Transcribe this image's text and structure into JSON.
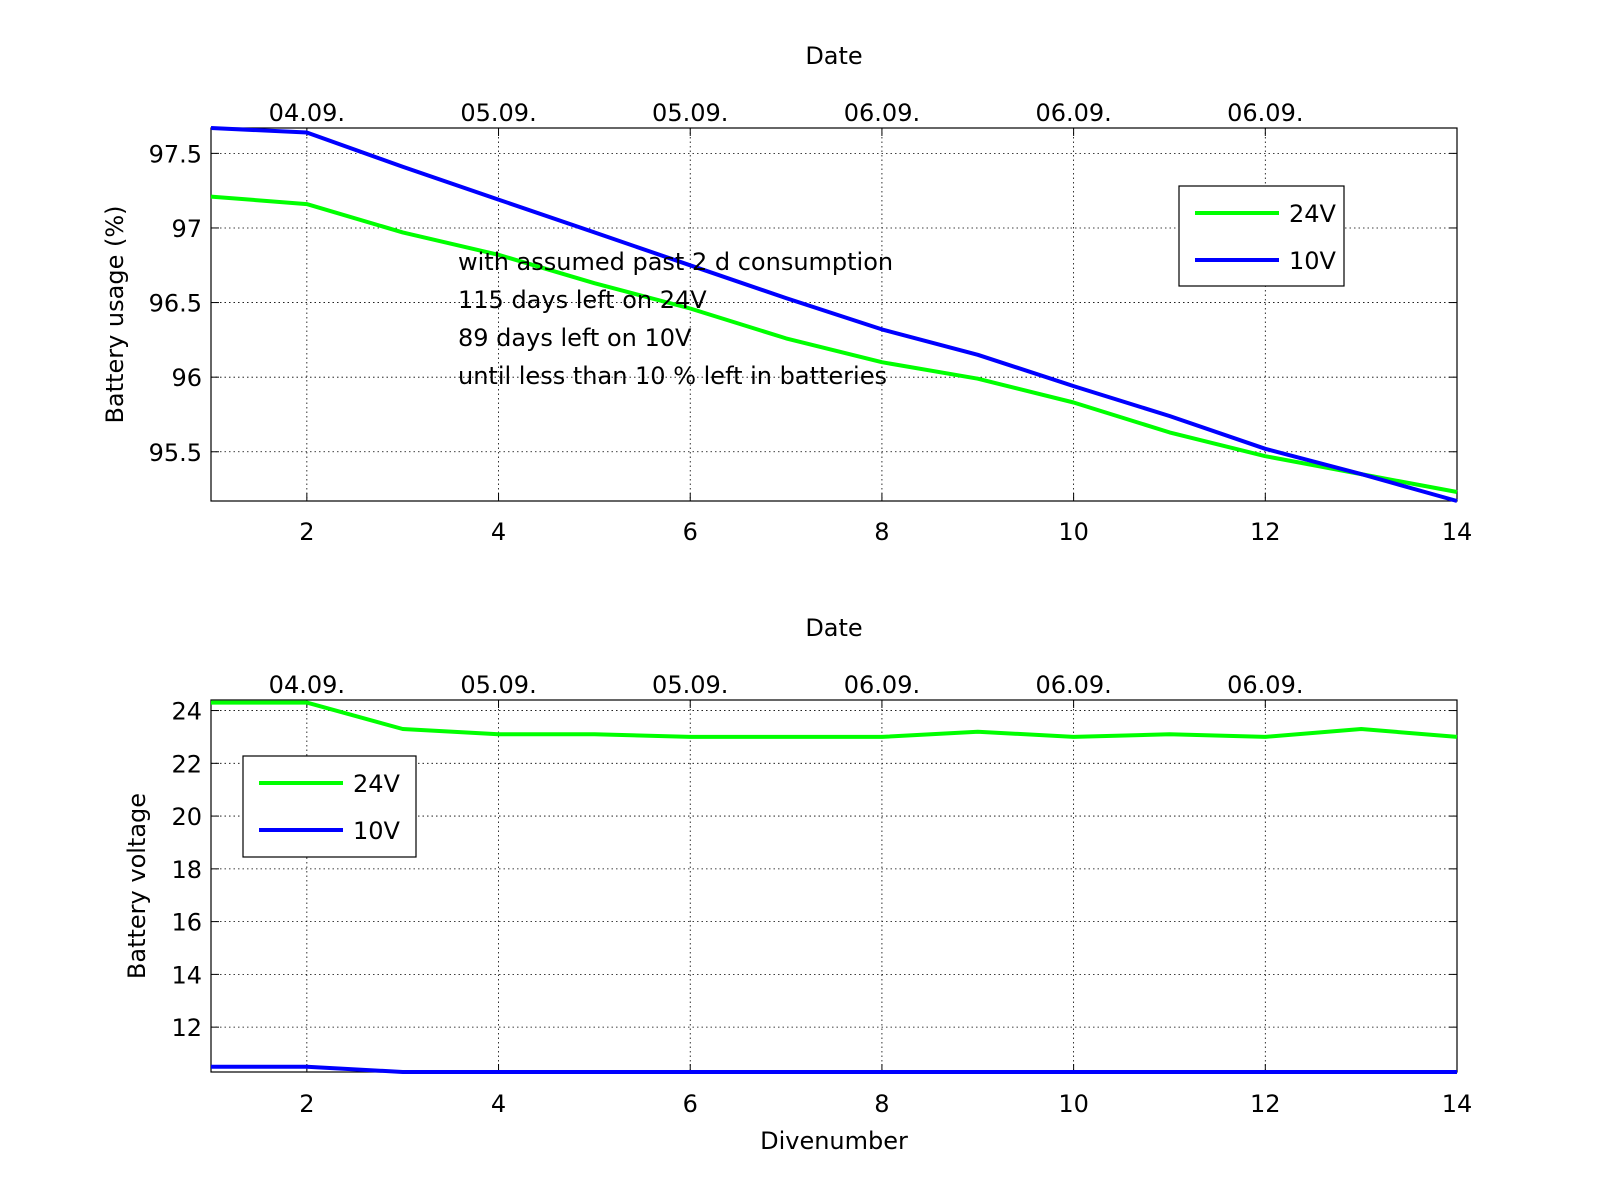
{
  "chart_data": [
    {
      "type": "line",
      "title": "Date",
      "xlabel": "",
      "ylabel": "Battery usage (%)",
      "xlim": [
        1,
        14
      ],
      "ylim": [
        95.17,
        97.67
      ],
      "grid": true,
      "legend_position": "top-right",
      "x_ticks": [
        2,
        4,
        6,
        8,
        10,
        12,
        14
      ],
      "y_ticks": [
        95.5,
        96,
        96.5,
        97,
        97.5
      ],
      "top_tick_labels": [
        "04.09.",
        "05.09.",
        "05.09.",
        "06.09.",
        "06.09.",
        "06.09."
      ],
      "annotation": [
        "with assumed past 2 d consumption",
        "115 days left on 24V",
        "89 days left on 10V",
        "until less than 10 % left in batteries"
      ],
      "x": [
        1,
        2,
        3,
        4,
        5,
        6,
        7,
        8,
        9,
        10,
        11,
        12,
        13,
        14
      ],
      "series": [
        {
          "name": "24V",
          "color": "#00ff00",
          "values": [
            97.21,
            97.16,
            96.97,
            96.82,
            96.63,
            96.46,
            96.26,
            96.1,
            95.99,
            95.83,
            95.63,
            95.47,
            95.35,
            95.23
          ]
        },
        {
          "name": "10V",
          "color": "#0000ff",
          "values": [
            97.67,
            97.64,
            97.41,
            97.19,
            96.97,
            96.75,
            96.53,
            96.32,
            96.15,
            95.94,
            95.74,
            95.52,
            95.35,
            95.17
          ]
        }
      ]
    },
    {
      "type": "line",
      "title": "Date",
      "xlabel": "Divenumber",
      "ylabel": "Battery voltage",
      "xlim": [
        1,
        14
      ],
      "ylim": [
        10.3,
        24.4
      ],
      "grid": true,
      "legend_position": "top-left",
      "x_ticks": [
        2,
        4,
        6,
        8,
        10,
        12,
        14
      ],
      "y_ticks": [
        12,
        14,
        16,
        18,
        20,
        22,
        24
      ],
      "top_tick_labels": [
        "04.09.",
        "05.09.",
        "05.09.",
        "06.09.",
        "06.09.",
        "06.09."
      ],
      "x": [
        1,
        2,
        3,
        4,
        5,
        6,
        7,
        8,
        9,
        10,
        11,
        12,
        13,
        14
      ],
      "series": [
        {
          "name": "24V",
          "color": "#00ff00",
          "values": [
            24.3,
            24.3,
            23.3,
            23.1,
            23.1,
            23.0,
            23.0,
            23.0,
            23.2,
            23.0,
            23.1,
            23.0,
            23.3,
            23.0
          ]
        },
        {
          "name": "10V",
          "color": "#0000ff",
          "values": [
            10.5,
            10.5,
            10.3,
            10.3,
            10.3,
            10.3,
            10.3,
            10.3,
            10.3,
            10.3,
            10.3,
            10.3,
            10.3,
            10.3
          ]
        }
      ]
    }
  ]
}
